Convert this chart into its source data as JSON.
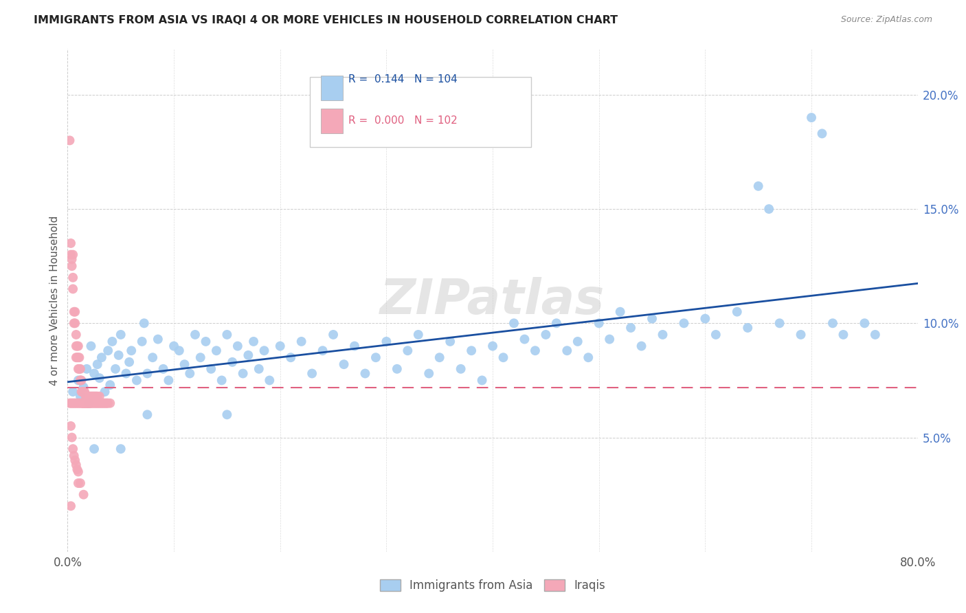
{
  "title": "IMMIGRANTS FROM ASIA VS IRAQI 4 OR MORE VEHICLES IN HOUSEHOLD CORRELATION CHART",
  "source": "Source: ZipAtlas.com",
  "ylabel": "4 or more Vehicles in Household",
  "legend_blue_R": "0.144",
  "legend_blue_N": "104",
  "legend_pink_R": "0.000",
  "legend_pink_N": "102",
  "blue_color": "#A8CEF0",
  "pink_color": "#F4A8B8",
  "blue_line_color": "#1A4FA0",
  "pink_line_color": "#E06080",
  "watermark": "ZIPatlas",
  "blue_scatter_x": [
    0.005,
    0.01,
    0.012,
    0.015,
    0.018,
    0.02,
    0.022,
    0.025,
    0.028,
    0.03,
    0.032,
    0.035,
    0.038,
    0.04,
    0.042,
    0.045,
    0.048,
    0.05,
    0.055,
    0.058,
    0.06,
    0.065,
    0.07,
    0.072,
    0.075,
    0.08,
    0.085,
    0.09,
    0.095,
    0.1,
    0.105,
    0.11,
    0.115,
    0.12,
    0.125,
    0.13,
    0.135,
    0.14,
    0.145,
    0.15,
    0.155,
    0.16,
    0.165,
    0.17,
    0.175,
    0.18,
    0.185,
    0.19,
    0.2,
    0.21,
    0.22,
    0.23,
    0.24,
    0.25,
    0.26,
    0.27,
    0.28,
    0.29,
    0.3,
    0.31,
    0.32,
    0.33,
    0.34,
    0.35,
    0.36,
    0.37,
    0.38,
    0.39,
    0.4,
    0.41,
    0.42,
    0.43,
    0.44,
    0.45,
    0.46,
    0.47,
    0.48,
    0.49,
    0.5,
    0.51,
    0.52,
    0.53,
    0.54,
    0.55,
    0.56,
    0.58,
    0.6,
    0.61,
    0.63,
    0.64,
    0.65,
    0.66,
    0.67,
    0.69,
    0.7,
    0.71,
    0.72,
    0.73,
    0.75,
    0.76,
    0.025,
    0.05,
    0.075,
    0.15
  ],
  "blue_scatter_y": [
    0.07,
    0.075,
    0.068,
    0.072,
    0.08,
    0.065,
    0.09,
    0.078,
    0.082,
    0.076,
    0.085,
    0.07,
    0.088,
    0.073,
    0.092,
    0.08,
    0.086,
    0.095,
    0.078,
    0.083,
    0.088,
    0.075,
    0.092,
    0.1,
    0.078,
    0.085,
    0.093,
    0.08,
    0.075,
    0.09,
    0.088,
    0.082,
    0.078,
    0.095,
    0.085,
    0.092,
    0.08,
    0.088,
    0.075,
    0.095,
    0.083,
    0.09,
    0.078,
    0.086,
    0.092,
    0.08,
    0.088,
    0.075,
    0.09,
    0.085,
    0.092,
    0.078,
    0.088,
    0.095,
    0.082,
    0.09,
    0.078,
    0.085,
    0.092,
    0.08,
    0.088,
    0.095,
    0.078,
    0.085,
    0.092,
    0.08,
    0.088,
    0.075,
    0.09,
    0.085,
    0.1,
    0.093,
    0.088,
    0.095,
    0.1,
    0.088,
    0.092,
    0.085,
    0.1,
    0.093,
    0.105,
    0.098,
    0.09,
    0.102,
    0.095,
    0.1,
    0.102,
    0.095,
    0.105,
    0.098,
    0.16,
    0.15,
    0.1,
    0.095,
    0.19,
    0.183,
    0.1,
    0.095,
    0.1,
    0.095,
    0.045,
    0.045,
    0.06,
    0.06
  ],
  "pink_scatter_x": [
    0.002,
    0.003,
    0.003,
    0.004,
    0.004,
    0.005,
    0.005,
    0.005,
    0.006,
    0.006,
    0.007,
    0.007,
    0.008,
    0.008,
    0.008,
    0.009,
    0.009,
    0.01,
    0.01,
    0.01,
    0.011,
    0.011,
    0.012,
    0.012,
    0.012,
    0.013,
    0.013,
    0.014,
    0.014,
    0.015,
    0.015,
    0.015,
    0.016,
    0.016,
    0.017,
    0.017,
    0.018,
    0.018,
    0.019,
    0.019,
    0.02,
    0.02,
    0.021,
    0.021,
    0.022,
    0.022,
    0.023,
    0.023,
    0.024,
    0.024,
    0.025,
    0.025,
    0.026,
    0.026,
    0.027,
    0.027,
    0.028,
    0.028,
    0.029,
    0.03,
    0.03,
    0.031,
    0.032,
    0.033,
    0.034,
    0.035,
    0.036,
    0.037,
    0.038,
    0.04,
    0.002,
    0.003,
    0.004,
    0.005,
    0.006,
    0.007,
    0.008,
    0.009,
    0.01,
    0.011,
    0.012,
    0.013,
    0.014,
    0.015,
    0.016,
    0.017,
    0.018,
    0.019,
    0.02,
    0.021,
    0.003,
    0.004,
    0.005,
    0.006,
    0.007,
    0.008,
    0.009,
    0.01,
    0.012,
    0.015,
    0.003,
    0.01
  ],
  "pink_scatter_y": [
    0.18,
    0.13,
    0.135,
    0.128,
    0.125,
    0.13,
    0.12,
    0.115,
    0.105,
    0.1,
    0.105,
    0.1,
    0.095,
    0.09,
    0.085,
    0.09,
    0.085,
    0.09,
    0.085,
    0.08,
    0.085,
    0.08,
    0.075,
    0.08,
    0.075,
    0.07,
    0.075,
    0.07,
    0.065,
    0.07,
    0.065,
    0.07,
    0.065,
    0.07,
    0.065,
    0.068,
    0.065,
    0.068,
    0.065,
    0.068,
    0.065,
    0.068,
    0.065,
    0.068,
    0.065,
    0.068,
    0.065,
    0.068,
    0.065,
    0.068,
    0.065,
    0.068,
    0.065,
    0.068,
    0.065,
    0.068,
    0.065,
    0.068,
    0.065,
    0.065,
    0.068,
    0.065,
    0.065,
    0.065,
    0.065,
    0.065,
    0.065,
    0.065,
    0.065,
    0.065,
    0.065,
    0.065,
    0.065,
    0.065,
    0.065,
    0.065,
    0.065,
    0.065,
    0.065,
    0.065,
    0.065,
    0.065,
    0.065,
    0.065,
    0.065,
    0.065,
    0.065,
    0.065,
    0.065,
    0.065,
    0.055,
    0.05,
    0.045,
    0.042,
    0.04,
    0.038,
    0.036,
    0.035,
    0.03,
    0.025,
    0.02,
    0.03
  ],
  "xlim": [
    0.0,
    0.8
  ],
  "ylim": [
    0.0,
    0.22
  ],
  "y_ticks": [
    0.05,
    0.1,
    0.15,
    0.2
  ],
  "y_tick_labels": [
    "5.0%",
    "10.0%",
    "15.0%",
    "20.0%"
  ]
}
